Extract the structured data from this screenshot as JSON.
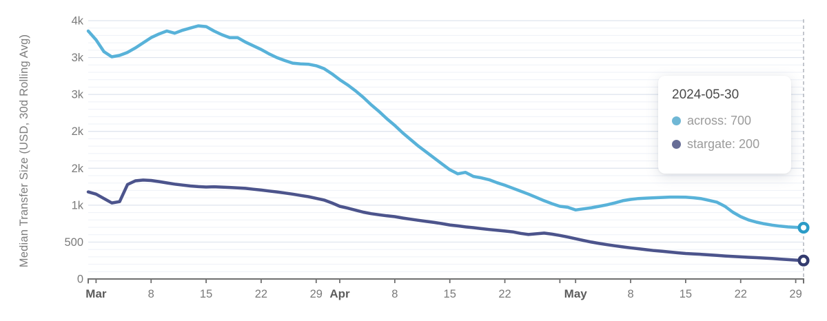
{
  "page": {
    "background": "#ffffff"
  },
  "chart_data": {
    "type": "line",
    "title": "",
    "ylabel": "Median Transfer Size (USD, 30d Rolling Avg)",
    "x_axis": {
      "start_date": "2024-02-29",
      "end_date": "2024-05-30",
      "total_days": 91,
      "ticks": [
        {
          "day": 1,
          "label": "Mar",
          "bold": true
        },
        {
          "day": 8,
          "label": "8",
          "bold": false
        },
        {
          "day": 15,
          "label": "15",
          "bold": false
        },
        {
          "day": 22,
          "label": "22",
          "bold": false
        },
        {
          "day": 29,
          "label": "29",
          "bold": false
        },
        {
          "day": 32,
          "label": "Apr",
          "bold": true
        },
        {
          "day": 39,
          "label": "8",
          "bold": false
        },
        {
          "day": 46,
          "label": "15",
          "bold": false
        },
        {
          "day": 53,
          "label": "22",
          "bold": false
        },
        {
          "day": 60,
          "label": "",
          "bold": false
        },
        {
          "day": 62,
          "label": "May",
          "bold": true
        },
        {
          "day": 69,
          "label": "8",
          "bold": false
        },
        {
          "day": 76,
          "label": "15",
          "bold": false
        },
        {
          "day": 83,
          "label": "22",
          "bold": false
        },
        {
          "day": 90,
          "label": "29",
          "bold": false
        }
      ]
    },
    "y_axis": {
      "min": 0,
      "max": 3500,
      "tick_step": 500,
      "minor_step": 100,
      "tick_labels": [
        "0",
        "500",
        "1k",
        "2k",
        "2k",
        "3k",
        "3k",
        "4k"
      ]
    },
    "grid": {
      "on": true,
      "major_color": "#dde3ed",
      "minor_color": "#eef1f7"
    },
    "axis_color": "#6f6f6f",
    "tick_label_color": "#7a7a7a",
    "month_label_color": "#5c5c5c",
    "crosshair": {
      "date": "2024-05-30",
      "day": 91,
      "color": "#b3b7bf"
    },
    "series": [
      {
        "name": "across",
        "color": "#58b2d9",
        "marker_stroke": "#2b9cc7",
        "points": [
          [
            0,
            3360
          ],
          [
            1,
            3240
          ],
          [
            2,
            3080
          ],
          [
            3,
            3010
          ],
          [
            4,
            3030
          ],
          [
            5,
            3070
          ],
          [
            6,
            3130
          ],
          [
            7,
            3200
          ],
          [
            8,
            3270
          ],
          [
            9,
            3320
          ],
          [
            10,
            3360
          ],
          [
            11,
            3330
          ],
          [
            12,
            3370
          ],
          [
            13,
            3400
          ],
          [
            14,
            3430
          ],
          [
            15,
            3420
          ],
          [
            16,
            3360
          ],
          [
            17,
            3310
          ],
          [
            18,
            3270
          ],
          [
            19,
            3270
          ],
          [
            20,
            3210
          ],
          [
            21,
            3160
          ],
          [
            22,
            3110
          ],
          [
            23,
            3050
          ],
          [
            24,
            3000
          ],
          [
            25,
            2960
          ],
          [
            26,
            2925
          ],
          [
            27,
            2915
          ],
          [
            28,
            2910
          ],
          [
            29,
            2890
          ],
          [
            30,
            2850
          ],
          [
            31,
            2780
          ],
          [
            32,
            2700
          ],
          [
            33,
            2630
          ],
          [
            34,
            2550
          ],
          [
            35,
            2460
          ],
          [
            36,
            2360
          ],
          [
            37,
            2270
          ],
          [
            38,
            2170
          ],
          [
            39,
            2080
          ],
          [
            40,
            1980
          ],
          [
            41,
            1890
          ],
          [
            42,
            1800
          ],
          [
            43,
            1720
          ],
          [
            44,
            1640
          ],
          [
            45,
            1560
          ],
          [
            46,
            1480
          ],
          [
            47,
            1425
          ],
          [
            48,
            1445
          ],
          [
            49,
            1390
          ],
          [
            50,
            1370
          ],
          [
            51,
            1345
          ],
          [
            52,
            1305
          ],
          [
            53,
            1270
          ],
          [
            54,
            1230
          ],
          [
            55,
            1190
          ],
          [
            56,
            1150
          ],
          [
            57,
            1105
          ],
          [
            58,
            1060
          ],
          [
            59,
            1020
          ],
          [
            60,
            985
          ],
          [
            61,
            972
          ],
          [
            62,
            935
          ],
          [
            63,
            950
          ],
          [
            64,
            965
          ],
          [
            65,
            985
          ],
          [
            66,
            1005
          ],
          [
            67,
            1030
          ],
          [
            68,
            1060
          ],
          [
            69,
            1078
          ],
          [
            70,
            1090
          ],
          [
            71,
            1096
          ],
          [
            72,
            1100
          ],
          [
            73,
            1105
          ],
          [
            74,
            1110
          ],
          [
            75,
            1110
          ],
          [
            76,
            1108
          ],
          [
            77,
            1100
          ],
          [
            78,
            1088
          ],
          [
            79,
            1065
          ],
          [
            80,
            1040
          ],
          [
            81,
            985
          ],
          [
            82,
            905
          ],
          [
            83,
            845
          ],
          [
            84,
            800
          ],
          [
            85,
            770
          ],
          [
            86,
            748
          ],
          [
            87,
            730
          ],
          [
            88,
            716
          ],
          [
            89,
            706
          ],
          [
            90,
            700
          ],
          [
            91,
            695
          ]
        ]
      },
      {
        "name": "stargate",
        "color": "#4c548c",
        "marker_stroke": "#333b6e",
        "points": [
          [
            0,
            1180
          ],
          [
            1,
            1150
          ],
          [
            2,
            1090
          ],
          [
            3,
            1030
          ],
          [
            4,
            1048
          ],
          [
            5,
            1280
          ],
          [
            6,
            1330
          ],
          [
            7,
            1340
          ],
          [
            8,
            1335
          ],
          [
            9,
            1320
          ],
          [
            10,
            1302
          ],
          [
            11,
            1285
          ],
          [
            12,
            1272
          ],
          [
            13,
            1260
          ],
          [
            14,
            1252
          ],
          [
            15,
            1246
          ],
          [
            16,
            1250
          ],
          [
            17,
            1245
          ],
          [
            18,
            1240
          ],
          [
            19,
            1235
          ],
          [
            20,
            1228
          ],
          [
            21,
            1216
          ],
          [
            22,
            1205
          ],
          [
            23,
            1192
          ],
          [
            24,
            1180
          ],
          [
            25,
            1165
          ],
          [
            26,
            1150
          ],
          [
            27,
            1132
          ],
          [
            28,
            1115
          ],
          [
            29,
            1093
          ],
          [
            30,
            1070
          ],
          [
            31,
            1030
          ],
          [
            32,
            985
          ],
          [
            33,
            960
          ],
          [
            34,
            932
          ],
          [
            35,
            905
          ],
          [
            36,
            885
          ],
          [
            37,
            870
          ],
          [
            38,
            856
          ],
          [
            39,
            845
          ],
          [
            40,
            826
          ],
          [
            41,
            810
          ],
          [
            42,
            795
          ],
          [
            43,
            780
          ],
          [
            44,
            766
          ],
          [
            45,
            750
          ],
          [
            46,
            732
          ],
          [
            47,
            720
          ],
          [
            48,
            706
          ],
          [
            49,
            695
          ],
          [
            50,
            682
          ],
          [
            51,
            670
          ],
          [
            52,
            660
          ],
          [
            53,
            650
          ],
          [
            54,
            638
          ],
          [
            55,
            618
          ],
          [
            56,
            603
          ],
          [
            57,
            612
          ],
          [
            58,
            622
          ],
          [
            59,
            608
          ],
          [
            60,
            590
          ],
          [
            61,
            568
          ],
          [
            62,
            545
          ],
          [
            63,
            522
          ],
          [
            64,
            500
          ],
          [
            65,
            482
          ],
          [
            66,
            465
          ],
          [
            67,
            450
          ],
          [
            68,
            435
          ],
          [
            69,
            422
          ],
          [
            70,
            410
          ],
          [
            71,
            397
          ],
          [
            72,
            385
          ],
          [
            73,
            375
          ],
          [
            74,
            365
          ],
          [
            75,
            355
          ],
          [
            76,
            345
          ],
          [
            77,
            340
          ],
          [
            78,
            334
          ],
          [
            79,
            327
          ],
          [
            80,
            320
          ],
          [
            81,
            312
          ],
          [
            82,
            305
          ],
          [
            83,
            300
          ],
          [
            84,
            294
          ],
          [
            85,
            289
          ],
          [
            86,
            284
          ],
          [
            87,
            277
          ],
          [
            88,
            270
          ],
          [
            89,
            262
          ],
          [
            90,
            256
          ],
          [
            91,
            250
          ]
        ]
      }
    ]
  },
  "tooltip": {
    "title": "2024-05-30",
    "items": [
      {
        "series": "across",
        "text": "across: 700",
        "value": "700",
        "dot_color": "#6fb7d5"
      },
      {
        "series": "stargate",
        "text": "stargate: 200",
        "value": "200",
        "dot_color": "#676d96"
      }
    ]
  }
}
